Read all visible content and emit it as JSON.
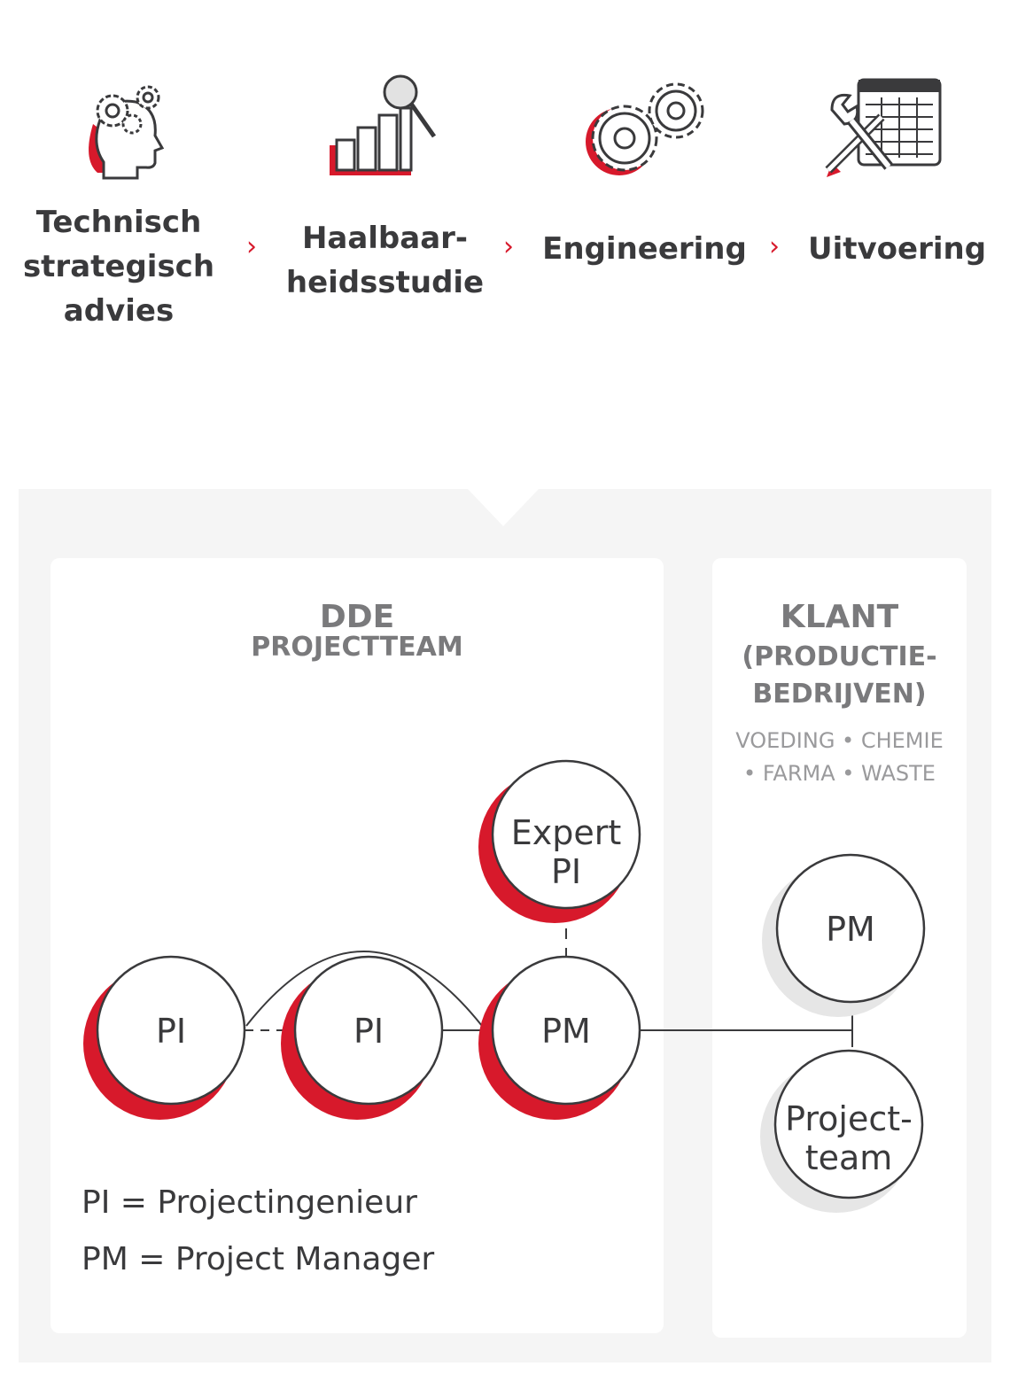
{
  "process": {
    "steps": [
      {
        "label": "Technisch\nstrategisch\nadvies",
        "icon": "head-gears-icon"
      },
      {
        "label": "Haalbaar-\nheidsstudie",
        "icon": "bar-chart-magnifier-icon"
      },
      {
        "label": "Engineering",
        "icon": "gears-icon"
      },
      {
        "label": "Uitvoering",
        "icon": "tools-spreadsheet-icon"
      }
    ],
    "separator": "›"
  },
  "dde": {
    "title": "DDE",
    "subtitle": "PROJECTTEAM",
    "nodes": {
      "expert": "Expert\nPI",
      "pi_left": "PI",
      "pi_middle": "PI",
      "pm": "PM"
    },
    "legend": [
      "PI = Projectingenieur",
      "PM = Project Manager"
    ]
  },
  "klant": {
    "title": "KLANT",
    "title_lines": [
      "(PRODUCTIE-",
      "BEDRIJVEN)"
    ],
    "sectors": "VOEDING • CHEMIE\n• FARMA • WASTE",
    "nodes": {
      "pm": "PM",
      "team": "Project-\nteam"
    }
  },
  "colors": {
    "accent": "#d7192b",
    "text_dark": "#3a3a3c",
    "text_gray": "#7a7a7c",
    "panel_bg": "#f5f5f5",
    "shadow_gray": "#e6e6e6"
  }
}
